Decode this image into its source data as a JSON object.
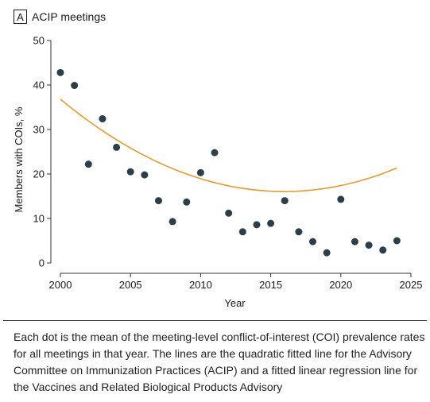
{
  "panel": {
    "letter": "A",
    "title": "ACIP meetings"
  },
  "caption": "Each dot is the mean of the meeting-level conflict-of-interest (COI) prevalence rates for all meetings in that year. The lines are the quadratic fitted line for the Advisory Committee on Immunization Practices (ACIP) and a fitted linear regression line for the Vaccines and Related Biological Products Advisory",
  "colors": {
    "dots": "#2b3f4a",
    "fit_line": "#e69a2e",
    "axis": "#333333"
  },
  "chart_data": {
    "type": "scatter",
    "title": "ACIP meetings",
    "xlabel": "Year",
    "ylabel": "Members with COIs, %",
    "xlim": [
      2000,
      2025
    ],
    "ylim": [
      0,
      50
    ],
    "x_ticks": [
      2000,
      2005,
      2010,
      2015,
      2020,
      2025
    ],
    "y_ticks": [
      0,
      10,
      20,
      30,
      40,
      50
    ],
    "grid": false,
    "series": [
      {
        "kind": "points",
        "x": [
          2000,
          2001,
          2002,
          2003,
          2004,
          2005,
          2006,
          2007,
          2008,
          2009,
          2010,
          2011,
          2012,
          2013,
          2014,
          2015,
          2016,
          2017,
          2018,
          2019,
          2020,
          2021,
          2022,
          2023,
          2024
        ],
        "y": [
          42.8,
          39.9,
          22.2,
          32.4,
          26.0,
          20.5,
          19.8,
          14.0,
          9.3,
          13.7,
          20.3,
          24.8,
          11.2,
          7.0,
          8.6,
          8.9,
          14.0,
          7.0,
          4.8,
          2.3,
          14.3,
          4.8,
          4.0,
          2.9,
          5.0
        ]
      },
      {
        "kind": "quadratic-fit",
        "coefficients": {
          "a": 0.0815,
          "b": -2.6,
          "c": 36.8,
          "x0": 2000
        },
        "x_range": [
          2000,
          2024
        ]
      }
    ]
  }
}
